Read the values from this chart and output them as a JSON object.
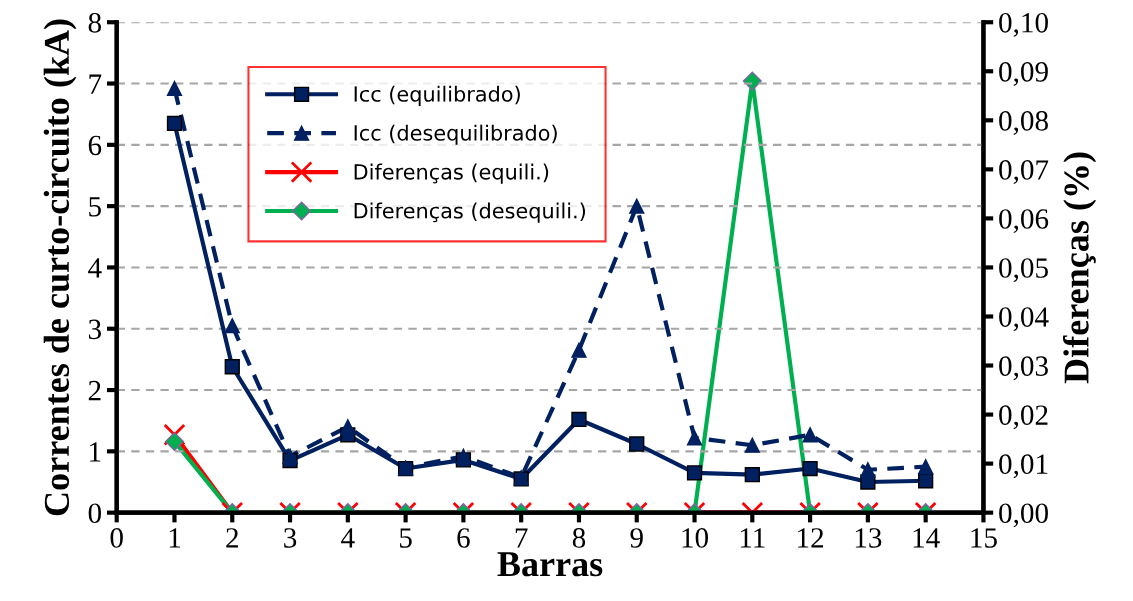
{
  "chart_data": {
    "type": "line",
    "xlabel": "Barras",
    "ylabel": "Correntes de curto-circuito (kA)",
    "y2label": "Diferenças (%)",
    "x": [
      1,
      2,
      3,
      4,
      5,
      6,
      7,
      8,
      9,
      10,
      11,
      12,
      13,
      14
    ],
    "xlim": [
      0,
      15
    ],
    "xticks": [
      0,
      1,
      2,
      3,
      4,
      5,
      6,
      7,
      8,
      9,
      10,
      11,
      12,
      13,
      14,
      15
    ],
    "ylim": [
      0,
      8
    ],
    "yticks": [
      0,
      1,
      2,
      3,
      4,
      5,
      6,
      7,
      8
    ],
    "y2lim": [
      0,
      0.1
    ],
    "y2ticks": [
      {
        "value": 0,
        "label": "0,00"
      },
      {
        "value": 0.01,
        "label": "0,01"
      },
      {
        "value": 0.02,
        "label": "0,02"
      },
      {
        "value": 0.03,
        "label": "0,03"
      },
      {
        "value": 0.04,
        "label": "0,04"
      },
      {
        "value": 0.05,
        "label": "0,05"
      },
      {
        "value": 0.06,
        "label": "0,06"
      },
      {
        "value": 0.07,
        "label": "0,07"
      },
      {
        "value": 0.08,
        "label": "0,08"
      },
      {
        "value": 0.09,
        "label": "0,09"
      },
      {
        "value": 0.1,
        "label": "0,10"
      }
    ],
    "grid": "y",
    "legend": "top left",
    "series": [
      {
        "name": "Icc (equilibrado)",
        "color": "#002060",
        "marker": "square",
        "line_style": "solid",
        "values": [
          6.35,
          2.38,
          0.85,
          1.27,
          0.72,
          0.86,
          0.55,
          1.52,
          1.12,
          0.65,
          0.62,
          0.72,
          0.5,
          0.52
        ]
      },
      {
        "name": "Icc (desequilibrado)",
        "color": "#002060",
        "marker": "triangle",
        "line_style": "dashed",
        "values": [
          6.92,
          3.05,
          0.92,
          1.4,
          0.73,
          0.92,
          0.57,
          2.65,
          5.0,
          1.22,
          1.1,
          1.27,
          0.7,
          0.75
        ]
      },
      {
        "name": "Diferenças (equili.)",
        "color": "#ff0000",
        "marker": "cross",
        "line_style": "solid",
        "axis": "y2",
        "values": [
          0.0159,
          0,
          0,
          0,
          0,
          0,
          0,
          0,
          0,
          0,
          0,
          0,
          0,
          0
        ]
      },
      {
        "name": "Diferenças (desequili.)",
        "color": "#00b050",
        "marker": "diamond",
        "line_style": "solid",
        "axis": "y2",
        "values": [
          0.0145,
          0,
          0,
          0,
          0,
          0,
          0,
          0,
          0,
          0,
          0.088,
          0,
          0,
          0
        ]
      }
    ]
  }
}
